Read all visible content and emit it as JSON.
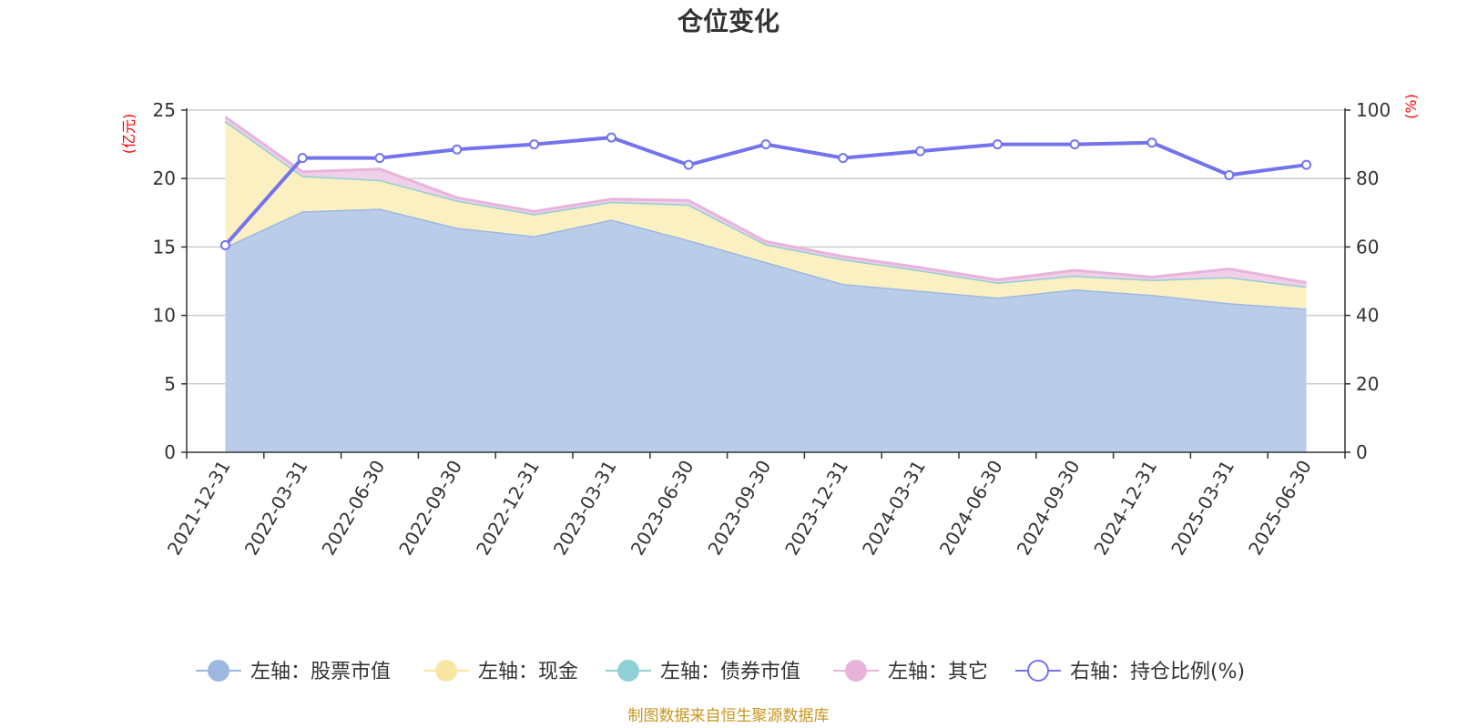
{
  "chart_data": {
    "type": "area",
    "title": "仓位变化",
    "left_axis": {
      "unit": "(亿元)",
      "ylim": [
        0,
        25
      ],
      "ticks": [
        0,
        5,
        10,
        15,
        20,
        25
      ]
    },
    "right_axis": {
      "unit": "(%)",
      "ylim": [
        0,
        100
      ],
      "ticks": [
        0,
        20,
        40,
        60,
        80,
        100
      ]
    },
    "categories": [
      "2021-12-31",
      "2022-03-31",
      "2022-06-30",
      "2022-09-30",
      "2022-12-31",
      "2023-03-31",
      "2023-06-30",
      "2023-09-30",
      "2023-12-31",
      "2024-03-31",
      "2024-06-30",
      "2024-09-30",
      "2024-12-31",
      "2025-03-31",
      "2025-06-30"
    ],
    "series": [
      {
        "name": "左轴：股票市值",
        "axis": "left",
        "stacked": true,
        "color": "#9db8e0",
        "fill": "#b9cdea",
        "values": [
          15.0,
          17.6,
          17.8,
          16.4,
          15.8,
          17.0,
          15.5,
          13.9,
          12.3,
          11.8,
          11.3,
          11.9,
          11.5,
          10.9,
          10.5
        ]
      },
      {
        "name": "左轴：现金",
        "axis": "left",
        "stacked": true,
        "color": "#f8e7a3",
        "fill": "#fbf0c2",
        "values": [
          9.2,
          2.6,
          2.1,
          2.0,
          1.6,
          1.3,
          2.6,
          1.3,
          1.8,
          1.5,
          1.1,
          1.0,
          1.1,
          1.9,
          1.6
        ]
      },
      {
        "name": "左轴：债券市值",
        "axis": "left",
        "stacked": true,
        "color": "#8fd0d6",
        "fill": "#b5e3e7",
        "values": [
          0,
          0,
          0,
          0,
          0,
          0,
          0,
          0,
          0,
          0,
          0,
          0,
          0,
          0,
          0
        ]
      },
      {
        "name": "左轴：其它",
        "axis": "left",
        "stacked": true,
        "color": "#e8b4dc",
        "fill": "#f0cfe8",
        "values": [
          0.3,
          0.3,
          0.8,
          0.2,
          0.2,
          0.2,
          0.3,
          0.2,
          0.2,
          0.2,
          0.2,
          0.4,
          0.2,
          0.6,
          0.3
        ]
      },
      {
        "name": "右轴：持仓比例(%)",
        "axis": "right",
        "type": "line",
        "color": "#7373ee",
        "values": [
          60.5,
          86.0,
          86.0,
          88.5,
          90.0,
          92.0,
          84.0,
          90.0,
          86.0,
          88.0,
          90.0,
          90.0,
          90.5,
          81.0,
          84.0
        ]
      }
    ],
    "grid": true,
    "legend_position": "bottom"
  },
  "footer": {
    "source": "制图数据来自恒生聚源数据库"
  },
  "colors": {
    "axis_unit": "#ff0000",
    "source": "#c8961e",
    "grid": "#cccccc",
    "axis": "#333333"
  }
}
